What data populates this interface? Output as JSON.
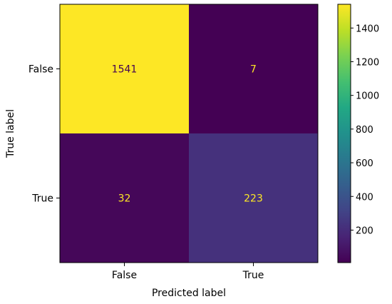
{
  "chart_data": {
    "type": "heatmap",
    "title": "",
    "xlabel": "Predicted label",
    "ylabel": "True label",
    "x_categories": [
      "False",
      "True"
    ],
    "y_categories": [
      "False",
      "True"
    ],
    "values": [
      [
        1541,
        7
      ],
      [
        32,
        223
      ]
    ],
    "colormap": "viridis",
    "colorbar": {
      "range": [
        7,
        1541
      ],
      "ticks": [
        200,
        400,
        600,
        800,
        1000,
        1200,
        1400
      ]
    },
    "cell_text_colors": {
      "dark": "#fde725",
      "light": "#440154"
    }
  }
}
